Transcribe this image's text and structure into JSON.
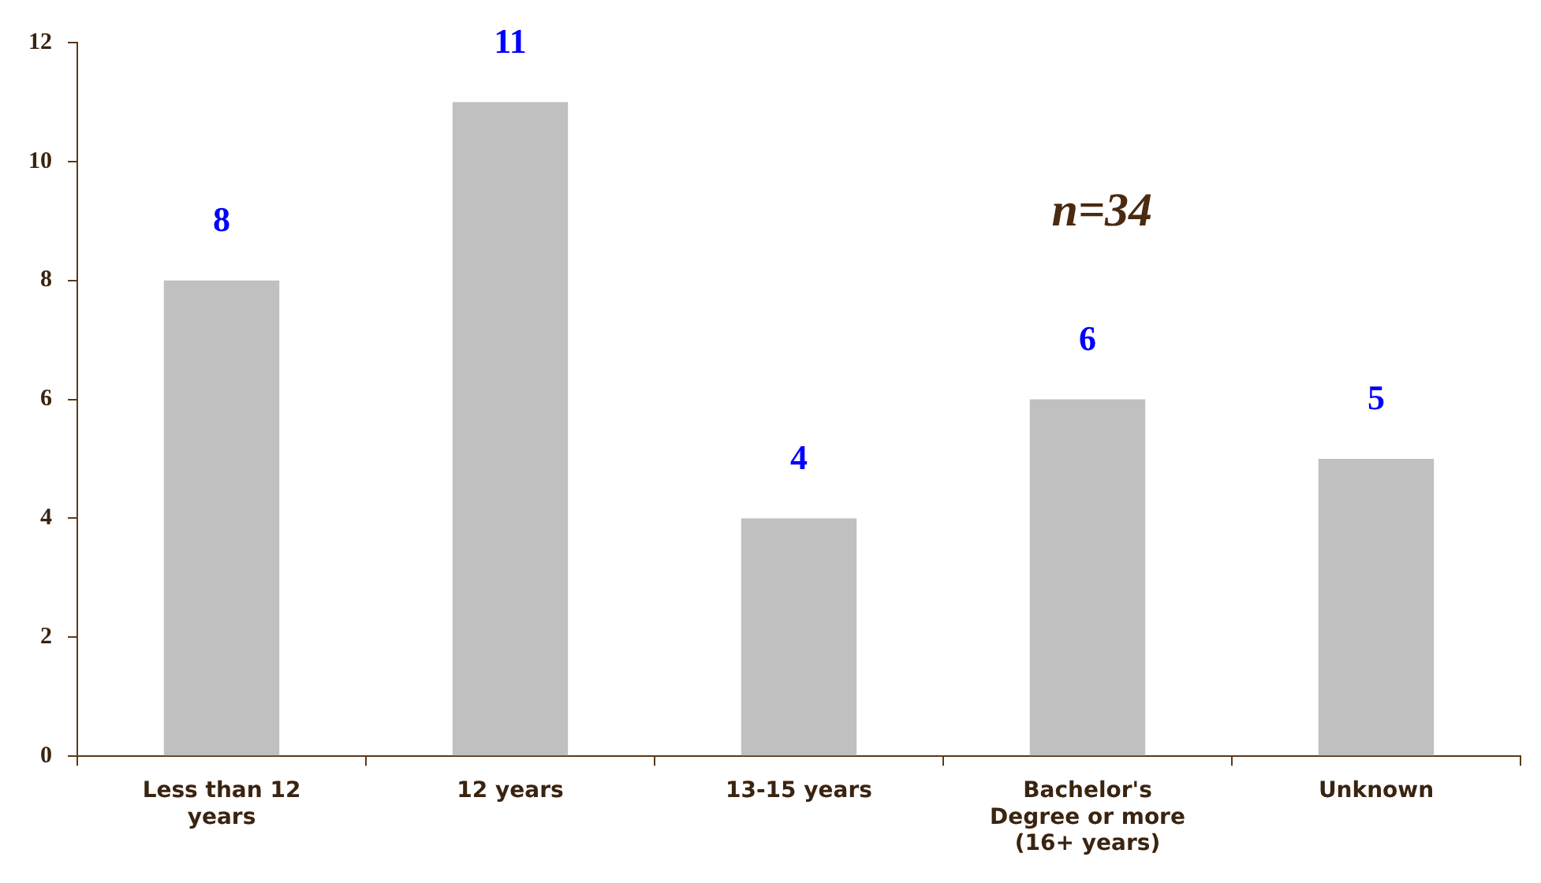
{
  "chart_data": {
    "type": "bar",
    "categories": [
      "Less than 12 years",
      "12 years",
      "13-15 years",
      "Bachelor's Degree or more (16+ years)",
      "Unknown"
    ],
    "values": [
      8,
      11,
      4,
      6,
      5
    ],
    "color": "#c0c0c0",
    "ylim": [
      0,
      12
    ],
    "yticks": [
      0,
      2,
      4,
      6,
      8,
      10,
      12
    ],
    "grid": false,
    "legend": false,
    "data_labels": true,
    "annotations": [
      "n=34"
    ]
  }
}
